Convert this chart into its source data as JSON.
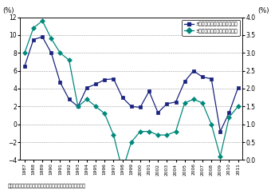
{
  "years": [
    1987,
    1988,
    1989,
    1990,
    1991,
    1992,
    1993,
    1994,
    1995,
    1996,
    1997,
    1998,
    1999,
    2000,
    2001,
    2002,
    2003,
    2004,
    2005,
    2006,
    2007,
    2008,
    2009,
    2010,
    2011
  ],
  "capex_growth": [
    6.5,
    9.5,
    9.8,
    8.0,
    4.7,
    2.8,
    2.0,
    4.1,
    4.5,
    5.0,
    5.1,
    3.0,
    2.0,
    1.9,
    3.7,
    1.3,
    2.3,
    2.5,
    4.8,
    6.0,
    5.3,
    5.1,
    -0.8,
    1.3,
    4.1
  ],
  "real_growth": [
    3.0,
    3.7,
    3.9,
    3.4,
    3.0,
    2.8,
    1.5,
    1.7,
    1.5,
    1.3,
    0.7,
    -0.3,
    0.5,
    0.8,
    0.8,
    0.7,
    0.7,
    0.8,
    1.6,
    1.7,
    1.6,
    1.0,
    0.1,
    1.2,
    1.5
  ],
  "capex_color": "#1a237e",
  "growth_color": "#00897b",
  "ylabel_left": "(%)",
  "ylabel_right": "(%)",
  "ylim_left": [
    -4.0,
    12.0
  ],
  "ylim_right": [
    0.0,
    4.0
  ],
  "yticks_left": [
    -4.0,
    -2.0,
    0.0,
    2.0,
    4.0,
    6.0,
    8.0,
    10.0,
    12.0
  ],
  "yticks_right": [
    0.0,
    0.5,
    1.0,
    1.5,
    2.0,
    2.5,
    3.0,
    3.5,
    4.0
  ],
  "legend_label1": "3年後設備投資増加率（左軸）",
  "legend_label2": "3年後実質期待成長率（右軸）",
  "source_text": "資料：内閣府「企業行動に関するアンケート調査」から作成。"
}
